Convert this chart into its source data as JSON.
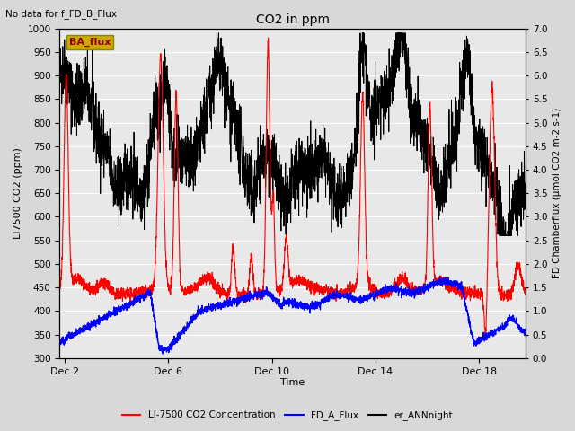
{
  "title": "CO2 in ppm",
  "title_note": "No data for f_FD_B_Flux",
  "ylabel_left": "LI7500 CO2 (ppm)",
  "ylabel_right": "FD Chamberflux (μmol CO2 m-2 s-1)",
  "xlabel": "Time",
  "ylim_left": [
    300,
    1000
  ],
  "ylim_right": [
    0.0,
    7.0
  ],
  "yticks_left": [
    300,
    350,
    400,
    450,
    500,
    550,
    600,
    650,
    700,
    750,
    800,
    850,
    900,
    950,
    1000
  ],
  "yticks_right": [
    0.0,
    0.5,
    1.0,
    1.5,
    2.0,
    2.5,
    3.0,
    3.5,
    4.0,
    4.5,
    5.0,
    5.5,
    6.0,
    6.5,
    7.0
  ],
  "xtick_labels": [
    "Dec 2",
    "Dec 6",
    "Dec 10",
    "Dec 14",
    "Dec 18"
  ],
  "xtick_positions": [
    2,
    6,
    10,
    14,
    18
  ],
  "xlim": [
    1.8,
    19.8
  ],
  "legend_labels": [
    "LI-7500 CO2 Concentration",
    "FD_A_Flux",
    "er_ANNnight"
  ],
  "ba_flux_label": "BA_flux",
  "ba_flux_box_color": "#ccaa00",
  "ba_flux_text_color": "#8b0000",
  "fig_bg_color": "#d8d8d8",
  "plot_bg_color": "#e8e8e8",
  "grid_color": "white",
  "line_lw_red": 0.8,
  "line_lw_blue": 0.9,
  "line_lw_black": 0.7,
  "seed": 42
}
